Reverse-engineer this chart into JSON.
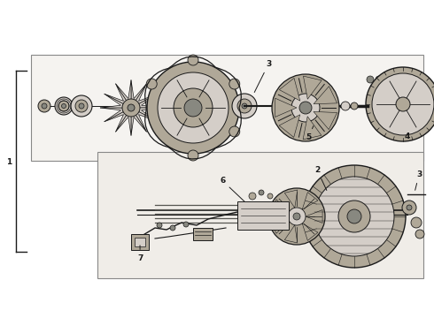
{
  "bg": "#f2eeea",
  "lc": "#1a1a1a",
  "fill_dark": "#888880",
  "fill_mid": "#b0a898",
  "fill_light": "#d4cec8",
  "fill_white": "#f0ece8",
  "panel_top": "#e8e4de",
  "panel_bot": "#dedad4"
}
